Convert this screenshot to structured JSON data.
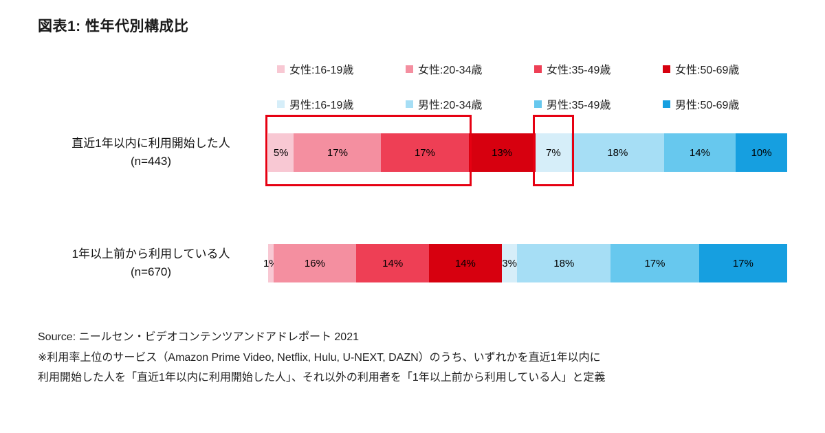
{
  "title": "図表1: 性年代別構成比",
  "chart_data": {
    "type": "bar",
    "orientation": "horizontal",
    "stacked": true,
    "title": "図表1: 性年代別構成比",
    "value_unit": "%",
    "legend_position": "top",
    "highlight_color": "#e60012",
    "segments": [
      {
        "label": "女性:16-19歳",
        "color": "#f8c8d3"
      },
      {
        "label": "女性:20-34歳",
        "color": "#f48fa0"
      },
      {
        "label": "女性:35-49歳",
        "color": "#ee3f55"
      },
      {
        "label": "女性:50-69歳",
        "color": "#d7000f"
      },
      {
        "label": "男性:16-19歳",
        "color": "#d6eef9"
      },
      {
        "label": "男性:20-34歳",
        "color": "#a6def5"
      },
      {
        "label": "男性:35-49歳",
        "color": "#67c8ee"
      },
      {
        "label": "男性:50-69歳",
        "color": "#169fe0"
      }
    ],
    "rows": [
      {
        "label": "直近1年以内に利用開始した人",
        "n": "(n=443)",
        "values": [
          5,
          17,
          17,
          13,
          7,
          18,
          14,
          10
        ]
      },
      {
        "label": "1年以上前から利用している人",
        "n": "(n=670)",
        "values": [
          1,
          16,
          14,
          14,
          3,
          18,
          17,
          17
        ]
      }
    ],
    "highlights": [
      {
        "row": 0,
        "from": 0,
        "to": 2
      },
      {
        "row": 0,
        "from": 4,
        "to": 4
      }
    ]
  },
  "source": {
    "line1": "Source: ニールセン・ビデオコンテンツアンドアドレポート 2021",
    "note1": "※利用率上位のサービス（Amazon Prime Video, Netflix, Hulu, U-NEXT, DAZN）のうち、いずれかを直近1年以内に",
    "note2": "利用開始した人を「直近1年以内に利用開始した人」、それ以外の利用者を「1年以上前から利用している人」と定義"
  }
}
